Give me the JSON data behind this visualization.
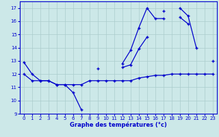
{
  "xlabel": "Graphe des températures (°c)",
  "x_values": [
    0,
    1,
    2,
    3,
    4,
    5,
    6,
    7,
    8,
    9,
    10,
    11,
    12,
    13,
    14,
    15,
    16,
    17,
    18,
    19,
    20,
    21,
    22,
    23
  ],
  "line1": [
    12.9,
    12.0,
    11.5,
    11.5,
    11.2,
    11.2,
    10.6,
    9.3,
    null,
    12.4,
    null,
    null,
    12.8,
    13.8,
    15.5,
    17.0,
    16.2,
    16.2,
    null,
    16.3,
    15.8,
    null,
    null,
    null
  ],
  "line2": [
    null,
    null,
    null,
    null,
    null,
    null,
    null,
    null,
    null,
    null,
    null,
    null,
    12.5,
    12.7,
    13.9,
    14.8,
    null,
    16.8,
    null,
    17.0,
    16.4,
    14.0,
    null,
    13.0
  ],
  "line3": [
    12.0,
    11.5,
    11.5,
    11.5,
    11.2,
    11.2,
    11.2,
    11.2,
    11.5,
    11.5,
    11.5,
    11.5,
    11.5,
    11.5,
    11.7,
    11.8,
    11.9,
    11.9,
    12.0,
    12.0,
    12.0,
    12.0,
    12.0,
    12.0
  ],
  "ylim": [
    9.0,
    17.5
  ],
  "xlim": [
    -0.5,
    23.5
  ],
  "yticks": [
    9,
    10,
    11,
    12,
    13,
    14,
    15,
    16,
    17
  ],
  "xticks": [
    0,
    1,
    2,
    3,
    4,
    5,
    6,
    7,
    8,
    9,
    10,
    11,
    12,
    13,
    14,
    15,
    16,
    17,
    18,
    19,
    20,
    21,
    22,
    23
  ],
  "line_color": "#0000cc",
  "bg_color": "#cce8e8",
  "grid_color": "#aacccc",
  "spine_color": "#0000cc"
}
